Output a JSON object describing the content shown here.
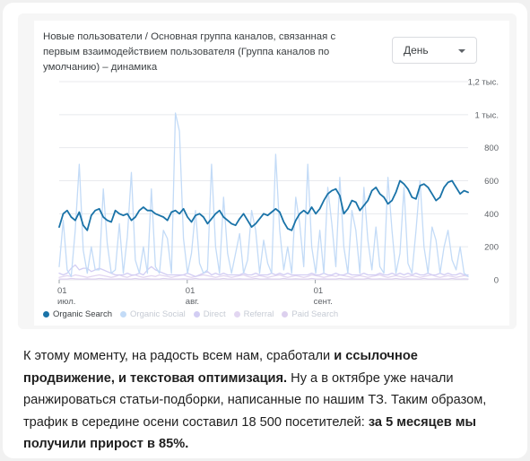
{
  "chart_data": {
    "type": "line",
    "title": "Новые пользователи / Основная группа каналов, связанная с первым взаимодействием пользователя (Группа каналов по умолчанию) – динамика",
    "granularity_label": "День",
    "ylim": [
      0,
      1200
    ],
    "y_ticks": [
      {
        "value": 0,
        "label": "0"
      },
      {
        "value": 200,
        "label": "200"
      },
      {
        "value": 400,
        "label": "400"
      },
      {
        "value": 600,
        "label": "600"
      },
      {
        "value": 800,
        "label": "800"
      },
      {
        "value": 1000,
        "label": "1 тыс."
      },
      {
        "value": 1200,
        "label": "1,2 тыс."
      }
    ],
    "x_ticks": [
      {
        "day": 0,
        "day_label": "01",
        "month_label": "июл."
      },
      {
        "day": 31,
        "day_label": "01",
        "month_label": "авг."
      },
      {
        "day": 62,
        "day_label": "01",
        "month_label": "сент."
      }
    ],
    "x_range": [
      0,
      99
    ],
    "grid": true,
    "legend_position": "bottom",
    "series": [
      {
        "name": "Organic Search",
        "color": "#1a73a8",
        "faded": false,
        "values": [
          320,
          400,
          420,
          380,
          360,
          410,
          330,
          300,
          390,
          420,
          430,
          380,
          360,
          350,
          420,
          400,
          390,
          400,
          360,
          380,
          420,
          440,
          420,
          420,
          400,
          390,
          380,
          360,
          410,
          420,
          400,
          430,
          380,
          350,
          390,
          400,
          380,
          340,
          370,
          400,
          420,
          380,
          360,
          340,
          330,
          370,
          400,
          360,
          320,
          340,
          370,
          400,
          390,
          410,
          430,
          410,
          350,
          310,
          300,
          360,
          400,
          420,
          400,
          440,
          400,
          430,
          480,
          520,
          540,
          550,
          510,
          400,
          430,
          480,
          470,
          420,
          450,
          480,
          540,
          560,
          520,
          500,
          460,
          480,
          530,
          600,
          580,
          550,
          500,
          490,
          570,
          580,
          560,
          520,
          480,
          500,
          560,
          590,
          600,
          560,
          520,
          540,
          530
        ]
      },
      {
        "name": "Organic Social",
        "color": "#c3dbf7",
        "faded": true,
        "values": [
          80,
          360,
          60,
          20,
          300,
          700,
          180,
          40,
          200,
          60,
          60,
          550,
          220,
          40,
          60,
          340,
          40,
          260,
          650,
          120,
          40,
          200,
          40,
          550,
          80,
          40,
          300,
          250,
          40,
          1010,
          900,
          250,
          40,
          160,
          420,
          100,
          40,
          60,
          700,
          200,
          40,
          500,
          160,
          40,
          160,
          280,
          40,
          120,
          420,
          300,
          40,
          240,
          100,
          40,
          760,
          300,
          60,
          200,
          40,
          500,
          340,
          80,
          700,
          200,
          40,
          300,
          40,
          560,
          340,
          80,
          620,
          200,
          40,
          420,
          300,
          40,
          560,
          240,
          60,
          320,
          80,
          40,
          620,
          300,
          40,
          160,
          560,
          100,
          40,
          300,
          600,
          200,
          40,
          320,
          240,
          40,
          200,
          300,
          120,
          60,
          200,
          40,
          20
        ]
      },
      {
        "name": "Direct",
        "color": "#d2cdf3",
        "faded": true,
        "values": [
          40,
          30,
          40,
          70,
          90,
          60,
          70,
          70,
          50,
          60,
          70,
          60,
          50,
          40,
          30,
          30,
          30,
          40,
          30,
          30,
          40,
          30,
          60,
          80,
          60,
          50,
          40,
          30,
          30,
          30,
          30,
          30,
          40,
          30,
          20,
          30,
          40,
          50,
          30,
          40,
          30,
          40,
          30,
          30,
          30,
          30,
          40,
          30,
          30,
          40,
          30,
          30,
          30,
          40,
          30,
          40,
          30,
          40,
          30,
          30,
          30,
          30,
          30,
          40,
          30,
          30,
          40,
          30,
          30,
          40,
          30,
          30,
          40,
          30,
          30,
          30,
          40,
          30,
          30,
          30,
          40,
          30,
          30,
          40,
          30,
          40,
          30,
          40,
          30,
          40,
          30,
          30,
          40,
          30,
          30,
          40,
          30,
          40,
          30,
          30,
          40,
          30,
          30
        ]
      },
      {
        "name": "Referral",
        "color": "#e2d6f1",
        "faded": true,
        "values": [
          15,
          20,
          25,
          20,
          30,
          25,
          20,
          15,
          20,
          25,
          30,
          25,
          20,
          15,
          20,
          30,
          20,
          15,
          25,
          30,
          20,
          15,
          20,
          25,
          20,
          30,
          25,
          20,
          15,
          20,
          25,
          30,
          20,
          15,
          20,
          25,
          30,
          25,
          20,
          15,
          20,
          25,
          20,
          15,
          20,
          25,
          30,
          20,
          15,
          20,
          25,
          20,
          15,
          20,
          25,
          30,
          20,
          15,
          20,
          25,
          20,
          15,
          20,
          30,
          25,
          20,
          15,
          20,
          25,
          20,
          30,
          25,
          20,
          15,
          20,
          25,
          20,
          15,
          20,
          25,
          30,
          20,
          15,
          20,
          25,
          20,
          15,
          20,
          25,
          20,
          15,
          20,
          25,
          30,
          20,
          15,
          20,
          25,
          20,
          15,
          20,
          25,
          20
        ]
      },
      {
        "name": "Paid Search",
        "color": "#dcd0ee",
        "faded": true,
        "values": [
          5,
          5,
          5,
          8,
          6,
          5,
          5,
          6,
          5,
          5,
          8,
          6,
          5,
          5,
          5,
          6,
          5,
          5,
          5,
          8,
          5,
          5,
          6,
          5,
          5,
          5,
          8,
          6,
          5,
          5,
          5,
          6,
          5,
          5,
          8,
          5,
          5,
          5,
          6,
          5,
          5,
          8,
          5,
          5,
          5,
          6,
          5,
          5,
          5,
          8,
          5,
          5,
          6,
          5,
          5,
          5,
          8,
          5,
          5,
          6,
          5,
          5,
          5,
          8,
          5,
          5,
          6,
          5,
          5,
          5,
          8,
          5,
          5,
          6,
          5,
          5,
          5,
          8,
          5,
          5,
          6,
          5,
          5,
          5,
          8,
          5,
          5,
          6,
          5,
          5,
          5,
          8,
          5,
          5,
          6,
          5,
          5,
          5,
          8,
          5,
          5,
          6,
          5
        ]
      }
    ]
  },
  "article": {
    "p1": "К этому моменту, на радость всем нам, сработали ",
    "b1": "и ссылочное продвижение, и текстовая оптимизация.",
    "p2": " Ну а в октябре уже начали ранжироваться статьи-подборки, написанные по нашим ТЗ. Таким образом, трафик в середине осени составил 18 500 посетителей: ",
    "b2": "за 5 месяцев мы получили прирост в 85%."
  }
}
